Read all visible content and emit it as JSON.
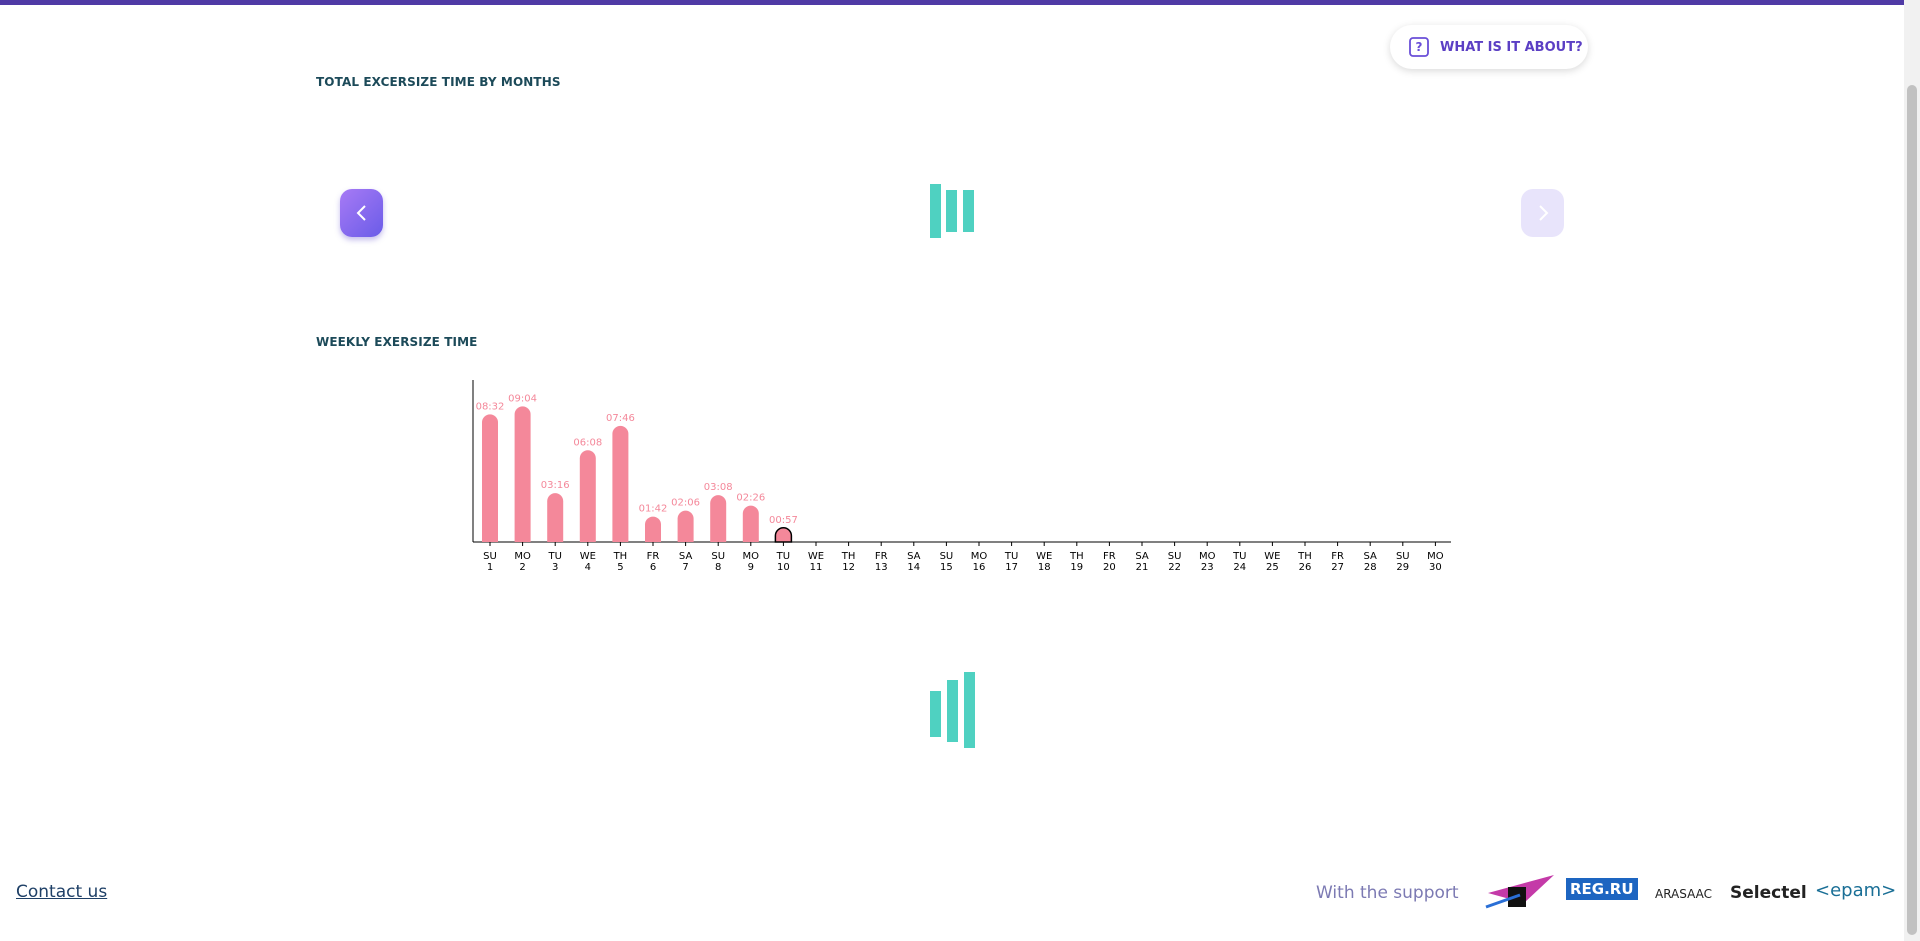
{
  "help_button": "WHAT IS IT ABOUT?",
  "monthly_title": "TOTAL EXCERSIZE TIME BY MONTHS",
  "chart_data": {
    "type": "bar",
    "title": "WEEKLY EXERSIZE TIME",
    "categories": [
      "SU",
      "MO",
      "TU",
      "WE",
      "TH",
      "FR",
      "SA",
      "SU",
      "MO",
      "TU",
      "WE",
      "TH",
      "FR",
      "SA",
      "SU",
      "MO",
      "TU",
      "WE",
      "TH",
      "FR",
      "SA",
      "SU",
      "MO",
      "TU",
      "WE",
      "TH",
      "FR",
      "SA",
      "SU",
      "MO"
    ],
    "days": [
      1,
      2,
      3,
      4,
      5,
      6,
      7,
      8,
      9,
      10,
      11,
      12,
      13,
      14,
      15,
      16,
      17,
      18,
      19,
      20,
      21,
      22,
      23,
      24,
      25,
      26,
      27,
      28,
      29,
      30
    ],
    "values": [
      512,
      544,
      196,
      368,
      466,
      102,
      126,
      188,
      146,
      57,
      null,
      null,
      null,
      null,
      null,
      null,
      null,
      null,
      null,
      null,
      null,
      null,
      null,
      null,
      null,
      null,
      null,
      null,
      null,
      null
    ],
    "value_labels": [
      "08:32",
      "09:04",
      "03:16",
      "06:08",
      "07:46",
      "01:42",
      "02:06",
      "03:08",
      "02:26",
      "00:57",
      null,
      null,
      null,
      null,
      null,
      null,
      null,
      null,
      null,
      null,
      null,
      null,
      null,
      null,
      null,
      null,
      null,
      null,
      null,
      null
    ],
    "color": "#f4889a",
    "highlight": 9,
    "ylim": [
      0,
      650
    ]
  },
  "footer": {
    "contact": "Contact us",
    "support": "With the support",
    "logos": [
      "REG.RU",
      "ARASAAC",
      "Selectel",
      "<epam>"
    ]
  }
}
